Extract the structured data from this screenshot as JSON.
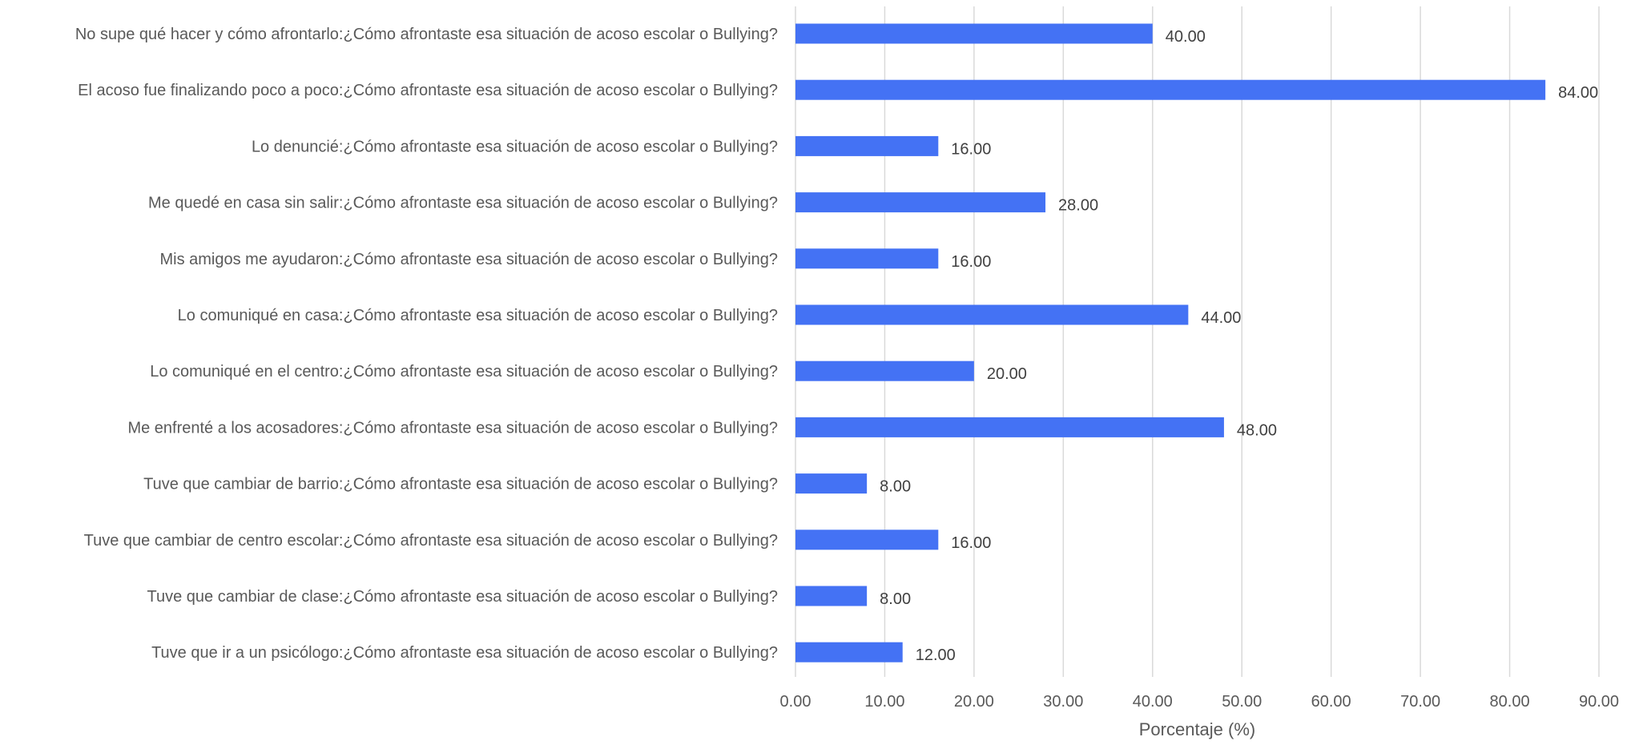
{
  "chart_data": {
    "type": "bar",
    "orientation": "horizontal",
    "title": "",
    "xlabel": "Porcentaje (%)",
    "ylabel": "",
    "xlim": [
      0,
      90
    ],
    "xticks": [
      "0.00",
      "10.00",
      "20.00",
      "30.00",
      "40.00",
      "50.00",
      "60.00",
      "70.00",
      "80.00",
      "90.00"
    ],
    "grid": true,
    "legend": "none",
    "bar_color": "#4472f4",
    "categories": [
      "No supe qué hacer y cómo afrontarlo:¿Cómo afrontaste esa situación de acoso escolar o Bullying?",
      "El acoso fue finalizando poco a poco:¿Cómo afrontaste esa situación de acoso escolar o Bullying?",
      "Lo denuncié:¿Cómo afrontaste esa situación de acoso escolar o Bullying?",
      "Me quedé en casa sin salir:¿Cómo afrontaste esa situación de acoso escolar o Bullying?",
      "Mis amigos me ayudaron:¿Cómo afrontaste esa situación de acoso escolar o Bullying?",
      "Lo comuniqué en casa:¿Cómo afrontaste esa situación de acoso escolar o Bullying?",
      "Lo comuniqué en el centro:¿Cómo afrontaste esa situación de acoso escolar o Bullying?",
      "Me enfrenté a los acosadores:¿Cómo afrontaste esa situación de acoso escolar o Bullying?",
      "Tuve que cambiar de barrio:¿Cómo afrontaste esa situación de acoso escolar o Bullying?",
      "Tuve que cambiar de centro escolar:¿Cómo afrontaste esa situación de acoso escolar o Bullying?",
      "Tuve que cambiar de clase:¿Cómo afrontaste esa situación de acoso escolar o Bullying?",
      "Tuve que ir a un psicólogo:¿Cómo afrontaste esa situación de acoso escolar o Bullying?"
    ],
    "values": [
      40,
      84,
      16,
      28,
      16,
      44,
      20,
      48,
      8,
      16,
      8,
      12
    ],
    "value_labels": [
      "40.00",
      "84.00",
      "16.00",
      "28.00",
      "16.00",
      "44.00",
      "20.00",
      "48.00",
      "8.00",
      "16.00",
      "8.00",
      "12.00"
    ]
  }
}
